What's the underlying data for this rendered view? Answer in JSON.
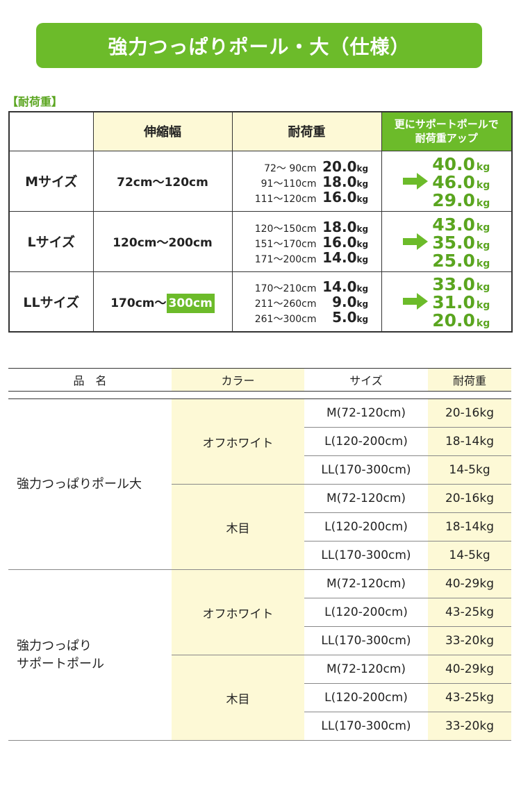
{
  "header": {
    "title": "強力つっぱりポール・大（仕様）"
  },
  "load_table": {
    "label": "【耐荷重】",
    "headers": [
      "伸縮幅",
      "耐荷重"
    ],
    "support_header": [
      "更にサポートポールで",
      "耐荷重アップ"
    ],
    "rows": [
      {
        "size": "Mサイズ",
        "range": [
          "72cm〜120cm"
        ],
        "details": [
          {
            "range": "72〜 90cm",
            "load": "20.0",
            "unit": "kg"
          },
          {
            "range": "91〜110cm",
            "load": "18.0",
            "unit": "kg"
          },
          {
            "range": "111〜120cm",
            "load": "16.0",
            "unit": "kg"
          }
        ],
        "support": [
          {
            "load": "40.0",
            "unit": "kg"
          },
          {
            "load": "46.0",
            "unit": "kg"
          },
          {
            "load": "29.0",
            "unit": "kg"
          }
        ]
      },
      {
        "size": "Lサイズ",
        "range": [
          "120cm〜200cm"
        ],
        "details": [
          {
            "range": "120〜150cm",
            "load": "18.0",
            "unit": "kg"
          },
          {
            "range": "151〜170cm",
            "load": "16.0",
            "unit": "kg"
          },
          {
            "range": "171〜200cm",
            "load": "14.0",
            "unit": "kg"
          }
        ],
        "support": [
          {
            "load": "43.0",
            "unit": "kg"
          },
          {
            "load": "35.0",
            "unit": "kg"
          },
          {
            "load": "25.0",
            "unit": "kg"
          }
        ]
      },
      {
        "size": "LLサイズ",
        "range": [
          "170cm〜",
          "300cm"
        ],
        "details": [
          {
            "range": "170〜210cm",
            "load": "14.0",
            "unit": "kg"
          },
          {
            "range": "211〜260cm",
            "load": "9.0",
            "unit": "kg"
          },
          {
            "range": "261〜300cm",
            "load": "5.0",
            "unit": "kg"
          }
        ],
        "support": [
          {
            "load": "33.0",
            "unit": "kg"
          },
          {
            "load": "31.0",
            "unit": "kg"
          },
          {
            "load": "20.0",
            "unit": "kg"
          }
        ]
      }
    ]
  },
  "product_table": {
    "headers": [
      "品　名",
      "カラー",
      "サイズ",
      "耐荷重"
    ],
    "products": [
      {
        "name": [
          "強力つっぱりポール大"
        ],
        "colors": [
          {
            "color": "オフホワイト",
            "items": [
              {
                "size": "M(72-120cm)",
                "load": "20-16kg"
              },
              {
                "size": "L(120-200cm)",
                "load": "18-14kg"
              },
              {
                "size": "LL(170-300cm)",
                "load": "14-5kg"
              }
            ]
          },
          {
            "color": "木目",
            "items": [
              {
                "size": "M(72-120cm)",
                "load": "20-16kg"
              },
              {
                "size": "L(120-200cm)",
                "load": "18-14kg"
              },
              {
                "size": "LL(170-300cm)",
                "load": "14-5kg"
              }
            ]
          }
        ]
      },
      {
        "name": [
          "強力つっぱり",
          "サポートポール"
        ],
        "colors": [
          {
            "color": "オフホワイト",
            "items": [
              {
                "size": "M(72-120cm)",
                "load": "40-29kg"
              },
              {
                "size": "L(120-200cm)",
                "load": "43-25kg"
              },
              {
                "size": "LL(170-300cm)",
                "load": "33-20kg"
              }
            ]
          },
          {
            "color": "木目",
            "items": [
              {
                "size": "M(72-120cm)",
                "load": "40-29kg"
              },
              {
                "size": "L(120-200cm)",
                "load": "43-25kg"
              },
              {
                "size": "LL(170-300cm)",
                "load": "33-20kg"
              }
            ]
          }
        ]
      }
    ]
  }
}
